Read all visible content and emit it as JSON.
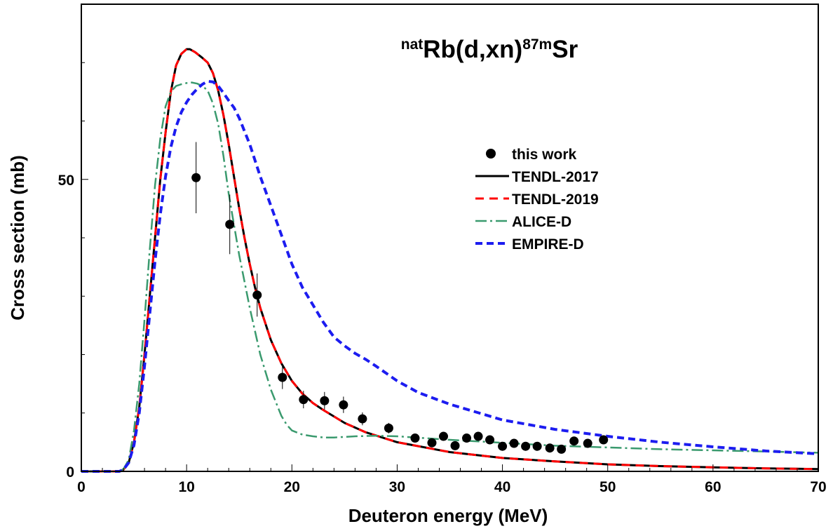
{
  "chart_data": {
    "type": "line",
    "title": {
      "pre_sup": "nat",
      "main1": "Rb(d,xn)",
      "mid_sup": "87m",
      "main2": "Sr"
    },
    "xlabel": "Deuteron energy (MeV)",
    "ylabel": "Cross section (mb)",
    "xlim": [
      0,
      70
    ],
    "ylim": [
      0,
      80
    ],
    "x_ticks": [
      0,
      10,
      20,
      30,
      40,
      50,
      60,
      70
    ],
    "y_ticks_labeled": [
      0,
      50
    ],
    "y_minor_step": 10,
    "x_minor_step": 2,
    "grid": false,
    "legend_position": "right",
    "series": [
      {
        "name": "this work",
        "kind": "points",
        "color": "#000000",
        "points": [
          {
            "x": 10.9,
            "y": 50.3,
            "err": 6.1
          },
          {
            "x": 14.1,
            "y": 42.3,
            "err": 5.1
          },
          {
            "x": 16.7,
            "y": 30.2,
            "err": 3.7
          },
          {
            "x": 19.1,
            "y": 16.1,
            "err": 2.0
          },
          {
            "x": 21.1,
            "y": 12.3,
            "err": 1.5
          },
          {
            "x": 23.1,
            "y": 12.1,
            "err": 1.5
          },
          {
            "x": 24.9,
            "y": 11.4,
            "err": 1.4
          },
          {
            "x": 26.7,
            "y": 9.0,
            "err": 1.1
          },
          {
            "x": 29.2,
            "y": 7.4,
            "err": 0.9
          },
          {
            "x": 31.7,
            "y": 5.7,
            "err": 0.7
          },
          {
            "x": 33.3,
            "y": 4.9,
            "err": 0.6
          },
          {
            "x": 34.4,
            "y": 6.0,
            "err": 0.7
          },
          {
            "x": 35.5,
            "y": 4.4,
            "err": 0.5
          },
          {
            "x": 36.6,
            "y": 5.7,
            "err": 0.7
          },
          {
            "x": 37.7,
            "y": 6.0,
            "err": 0.7
          },
          {
            "x": 38.8,
            "y": 5.4,
            "err": 0.7
          },
          {
            "x": 40.0,
            "y": 4.3,
            "err": 0.5
          },
          {
            "x": 41.1,
            "y": 4.8,
            "err": 0.6
          },
          {
            "x": 42.2,
            "y": 4.3,
            "err": 0.5
          },
          {
            "x": 43.3,
            "y": 4.3,
            "err": 0.5
          },
          {
            "x": 44.5,
            "y": 4.0,
            "err": 0.5
          },
          {
            "x": 45.6,
            "y": 3.8,
            "err": 0.5
          },
          {
            "x": 46.8,
            "y": 5.2,
            "err": 0.6
          },
          {
            "x": 48.1,
            "y": 4.8,
            "err": 0.6
          },
          {
            "x": 49.6,
            "y": 5.4,
            "err": 0.7
          }
        ]
      },
      {
        "name": "TENDL-2017",
        "kind": "line",
        "color": "#000000",
        "dash": "",
        "width": 3,
        "x": [
          0,
          3.6,
          4.0,
          4.5,
          5.0,
          5.5,
          6.0,
          6.5,
          7.0,
          7.5,
          8.0,
          8.5,
          9.0,
          9.5,
          10.0,
          10.3,
          10.8,
          11.5,
          12.0,
          12.5,
          13.0,
          13.5,
          14.0,
          14.5,
          15.0,
          15.5,
          16.0,
          16.5,
          17.0,
          18.0,
          19.0,
          20.0,
          21.0,
          22.0,
          23.0,
          25.0,
          27.0,
          30.0,
          35.0,
          40.0,
          45.0,
          50.0,
          55.0,
          60.0,
          65.0,
          70.0
        ],
        "y": [
          0,
          0,
          0.3,
          1.5,
          5,
          11,
          20,
          30,
          40,
          50,
          58,
          65,
          69.5,
          71.5,
          72.3,
          72.3,
          71.8,
          70.8,
          70.0,
          68.2,
          65.2,
          61.0,
          56.0,
          50.5,
          45.0,
          40.0,
          35.5,
          31.5,
          28.0,
          22.5,
          18.5,
          15.5,
          13.3,
          11.7,
          10.5,
          8.3,
          6.7,
          5.0,
          3.3,
          2.3,
          1.7,
          1.2,
          0.9,
          0.7,
          0.5,
          0.4
        ]
      },
      {
        "name": "TENDL-2019",
        "kind": "line",
        "color": "#ff0000",
        "dash": "12,8",
        "width": 3,
        "x": [
          0,
          3.6,
          4.0,
          4.5,
          5.0,
          5.5,
          6.0,
          6.5,
          7.0,
          7.5,
          8.0,
          8.5,
          9.0,
          9.5,
          10.0,
          10.3,
          10.8,
          11.5,
          12.0,
          12.5,
          13.0,
          13.5,
          14.0,
          14.5,
          15.0,
          15.5,
          16.0,
          16.5,
          17.0,
          18.0,
          19.0,
          20.0,
          21.0,
          22.0,
          23.0,
          25.0,
          27.0,
          30.0,
          35.0,
          40.0,
          45.0,
          50.0,
          55.0,
          60.0,
          65.0,
          70.0
        ],
        "y": [
          0,
          0,
          0.3,
          1.5,
          5,
          11,
          20,
          30,
          40,
          50,
          58,
          65,
          69.5,
          71.5,
          72.3,
          72.3,
          71.8,
          70.8,
          70.0,
          68.2,
          65.2,
          61.0,
          56.0,
          50.5,
          45.0,
          40.0,
          35.5,
          31.5,
          28.0,
          22.5,
          18.5,
          15.5,
          13.3,
          11.7,
          10.5,
          8.3,
          6.7,
          5.0,
          3.3,
          2.3,
          1.7,
          1.2,
          0.9,
          0.7,
          0.5,
          0.4
        ]
      },
      {
        "name": "ALICE-D",
        "kind": "line",
        "color": "#3a9a6e",
        "dash": "16,5,3,5",
        "width": 2.5,
        "x": [
          0,
          3.6,
          4.0,
          4.5,
          5.0,
          5.5,
          6.0,
          6.5,
          7.0,
          7.5,
          8.0,
          8.5,
          9.0,
          9.5,
          10.0,
          10.5,
          11.0,
          11.5,
          12.0,
          12.5,
          13.0,
          13.5,
          14.0,
          15.0,
          16.0,
          17.0,
          18.0,
          19.0,
          19.5,
          20.0,
          21.0,
          22.0,
          23.0,
          24.0,
          26.0,
          28.0,
          30.0,
          35.0,
          40.0,
          45.0,
          50.0,
          55.0,
          60.0,
          65.0,
          70.0
        ],
        "y": [
          0,
          0,
          0.4,
          2,
          7,
          15,
          26,
          38,
          49,
          57,
          62.5,
          65,
          66,
          66.3,
          66.5,
          66.6,
          66.4,
          66.0,
          65.2,
          63.0,
          59.5,
          54.0,
          47.5,
          37.0,
          28.0,
          20.0,
          14.0,
          9.5,
          8.0,
          7.0,
          6.3,
          6.0,
          5.8,
          5.8,
          6.0,
          6.1,
          6.0,
          5.4,
          4.9,
          4.4,
          4.1,
          3.8,
          3.6,
          3.4,
          3.2
        ]
      },
      {
        "name": "EMPIRE-D",
        "kind": "line",
        "color": "#1c1cf0",
        "dash": "10,6",
        "width": 4,
        "x": [
          0,
          3.6,
          4.0,
          4.5,
          5.0,
          5.5,
          6.0,
          6.5,
          7.0,
          7.5,
          8.0,
          8.5,
          9.0,
          9.5,
          10.0,
          10.5,
          11.0,
          11.5,
          12.0,
          12.5,
          13.0,
          13.5,
          14.0,
          14.5,
          15.0,
          16.0,
          17.0,
          18.0,
          19.0,
          20.0,
          21.0,
          22.0,
          23.0,
          24.0,
          25.0,
          26.0,
          27.0,
          28.0,
          30.0,
          32.0,
          35.0,
          40.0,
          45.0,
          50.0,
          55.0,
          60.0,
          65.0,
          70.0
        ],
        "y": [
          0,
          0,
          0.3,
          1.5,
          4.5,
          10,
          18,
          27,
          36,
          44,
          50.5,
          55.5,
          59,
          61.5,
          63.2,
          64.5,
          65.5,
          66.3,
          66.8,
          66.7,
          66.0,
          64.8,
          63.5,
          62.3,
          60.5,
          56.0,
          50.5,
          45.5,
          40.5,
          35.5,
          31.5,
          28.5,
          25.5,
          23.0,
          21.5,
          20.2,
          19.2,
          18.0,
          15.5,
          13.5,
          11.5,
          8.8,
          7.2,
          6.0,
          5.0,
          4.2,
          3.5,
          3.0
        ]
      }
    ]
  }
}
